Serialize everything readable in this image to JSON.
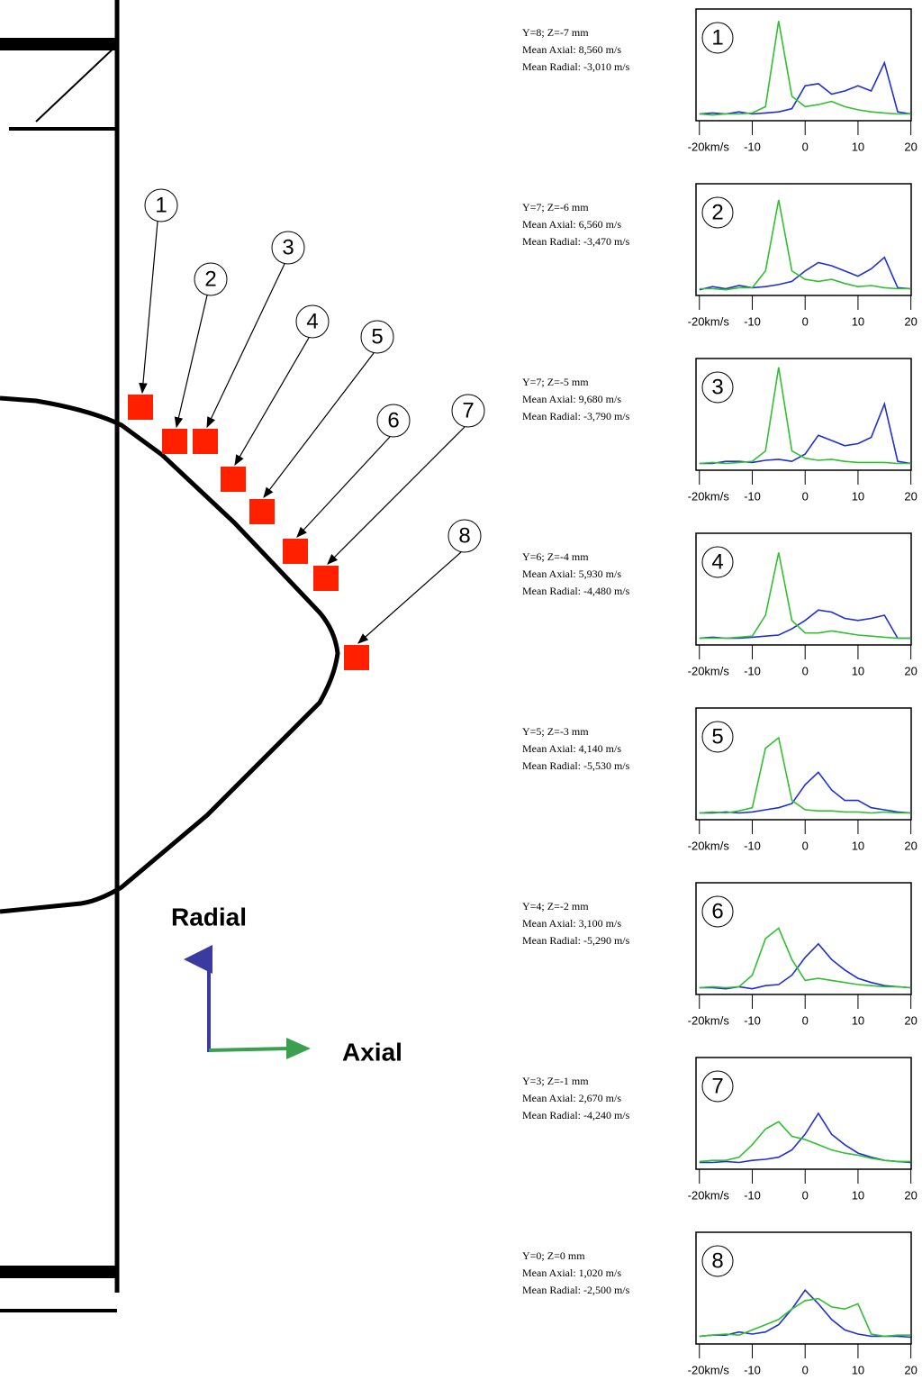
{
  "diagram": {
    "markers": [
      "1",
      "2",
      "3",
      "4",
      "5",
      "6",
      "7",
      "8"
    ],
    "radial_label": "Radial",
    "axial_label": "Axial"
  },
  "chart_data": [
    {
      "type": "line",
      "title": "1",
      "annotations": [
        "Y=8; Z=-7 mm",
        "Mean Axial: 8,560 m/s",
        "Mean Radial:  -3,010 m/s"
      ],
      "x": [
        -20,
        -17.5,
        -15,
        -12.5,
        -10,
        -7.5,
        -5,
        -2.5,
        0,
        2.5,
        5,
        7.5,
        10,
        12.5,
        15,
        17.5,
        20
      ],
      "series": [
        {
          "color": "#2030d0",
          "values": [
            0.03,
            0.04,
            0.03,
            0.05,
            0.03,
            0.04,
            0.05,
            0.08,
            0.3,
            0.32,
            0.22,
            0.25,
            0.3,
            0.25,
            0.52,
            0.05,
            0.03
          ]
        },
        {
          "color": "#30c030",
          "values": [
            0.03,
            0.02,
            0.03,
            0.03,
            0.04,
            0.1,
            0.92,
            0.2,
            0.1,
            0.12,
            0.15,
            0.1,
            0.07,
            0.05,
            0.04,
            0.03,
            0.03
          ]
        }
      ],
      "xlim": [
        -20.3,
        20.4
      ],
      "ylim": [
        0,
        1
      ],
      "xticks": [
        {
          "value": -20,
          "label": "-20km/s"
        },
        -10,
        0,
        10,
        20
      ]
    },
    {
      "type": "line",
      "title": "2",
      "annotations": [
        "Y=7; Z=-6 mm",
        "Mean Axial: 6,560 m/s",
        "Mean Radial:  -3,470 m/s"
      ],
      "x": [
        -20,
        -17.5,
        -15,
        -12.5,
        -10,
        -7.5,
        -5,
        -2.5,
        0,
        2.5,
        5,
        7.5,
        10,
        12.5,
        15,
        17.5,
        20
      ],
      "series": [
        {
          "color": "#2030d0",
          "values": [
            0.02,
            0.05,
            0.03,
            0.06,
            0.04,
            0.05,
            0.07,
            0.1,
            0.2,
            0.28,
            0.25,
            0.2,
            0.15,
            0.22,
            0.33,
            0.04,
            0.03
          ]
        },
        {
          "color": "#30c030",
          "values": [
            0.03,
            0.03,
            0.02,
            0.04,
            0.04,
            0.2,
            0.88,
            0.2,
            0.12,
            0.1,
            0.12,
            0.08,
            0.05,
            0.06,
            0.04,
            0.03,
            0.03
          ]
        }
      ],
      "xlim": [
        -20.3,
        20.4
      ],
      "ylim": [
        0,
        1
      ],
      "xticks": [
        {
          "value": -20,
          "label": "-20km/s"
        },
        -10,
        0,
        10,
        20
      ]
    },
    {
      "type": "line",
      "title": "3",
      "annotations": [
        "Y=7; Z=-5 mm",
        "Mean Axial: 9,680 m/s",
        "Mean Radial:  -3,790 m/s"
      ],
      "x": [
        -20,
        -17.5,
        -15,
        -12.5,
        -10,
        -7.5,
        -5,
        -2.5,
        0,
        2.5,
        5,
        7.5,
        10,
        12.5,
        15,
        17.5,
        20
      ],
      "series": [
        {
          "color": "#2030d0",
          "values": [
            0.03,
            0.03,
            0.05,
            0.05,
            0.04,
            0.06,
            0.07,
            0.05,
            0.12,
            0.3,
            0.25,
            0.2,
            0.22,
            0.28,
            0.6,
            0.05,
            0.03
          ]
        },
        {
          "color": "#30c030",
          "values": [
            0.03,
            0.04,
            0.03,
            0.04,
            0.05,
            0.15,
            0.95,
            0.15,
            0.08,
            0.06,
            0.07,
            0.05,
            0.04,
            0.04,
            0.04,
            0.03,
            0.03
          ]
        }
      ],
      "xlim": [
        -20.3,
        20.4
      ],
      "ylim": [
        0,
        1
      ],
      "xticks": [
        {
          "value": -20,
          "label": "-20km/s"
        },
        -10,
        0,
        10,
        20
      ]
    },
    {
      "type": "line",
      "title": "4",
      "annotations": [
        "Y=6; Z=-4 mm",
        "Mean Axial: 5,930 m/s",
        "Mean Radial:  -4,480 m/s"
      ],
      "x": [
        -20,
        -17.5,
        -15,
        -12.5,
        -10,
        -7.5,
        -5,
        -2.5,
        0,
        2.5,
        5,
        7.5,
        10,
        12.5,
        15,
        17.5,
        20
      ],
      "series": [
        {
          "color": "#2030d0",
          "values": [
            0.03,
            0.04,
            0.03,
            0.03,
            0.04,
            0.05,
            0.06,
            0.12,
            0.2,
            0.3,
            0.28,
            0.22,
            0.2,
            0.22,
            0.25,
            0.03,
            0.03
          ]
        },
        {
          "color": "#30c030",
          "values": [
            0.03,
            0.03,
            0.03,
            0.04,
            0.05,
            0.25,
            0.85,
            0.2,
            0.08,
            0.08,
            0.1,
            0.08,
            0.06,
            0.05,
            0.04,
            0.03,
            0.03
          ]
        }
      ],
      "xlim": [
        -20.3,
        20.4
      ],
      "ylim": [
        0,
        1
      ],
      "xticks": [
        {
          "value": -20,
          "label": "-20km/s"
        },
        -10,
        0,
        10,
        20
      ]
    },
    {
      "type": "line",
      "title": "5",
      "annotations": [
        "Y=5; Z=-3 mm",
        "Mean Axial: 4,140 m/s",
        "Mean Radial:  -5,530 m/s"
      ],
      "x": [
        -20,
        -17.5,
        -15,
        -12.5,
        -10,
        -7.5,
        -5,
        -2.5,
        0,
        2.5,
        5,
        7.5,
        10,
        12.5,
        15,
        17.5,
        20
      ],
      "series": [
        {
          "color": "#2030d0",
          "values": [
            0.03,
            0.03,
            0.04,
            0.03,
            0.04,
            0.06,
            0.08,
            0.12,
            0.3,
            0.42,
            0.25,
            0.15,
            0.15,
            0.08,
            0.06,
            0.04,
            0.03
          ]
        },
        {
          "color": "#30c030",
          "values": [
            0.03,
            0.04,
            0.03,
            0.05,
            0.08,
            0.65,
            0.75,
            0.15,
            0.06,
            0.05,
            0.05,
            0.04,
            0.04,
            0.03,
            0.04,
            0.03,
            0.03
          ]
        }
      ],
      "xlim": [
        -20.3,
        20.4
      ],
      "ylim": [
        0,
        1
      ],
      "xticks": [
        {
          "value": -20,
          "label": "-20km/s"
        },
        -10,
        0,
        10,
        20
      ]
    },
    {
      "type": "line",
      "title": "6",
      "annotations": [
        "Y=4; Z=-2 mm",
        "Mean Axial: 3,100 m/s",
        "Mean Radial:  -5,290 m/s"
      ],
      "x": [
        -20,
        -17.5,
        -15,
        -12.5,
        -10,
        -7.5,
        -5,
        -2.5,
        0,
        2.5,
        5,
        7.5,
        10,
        12.5,
        15,
        17.5,
        20
      ],
      "series": [
        {
          "color": "#2030d0",
          "values": [
            0.03,
            0.03,
            0.02,
            0.04,
            0.02,
            0.05,
            0.06,
            0.15,
            0.32,
            0.45,
            0.3,
            0.2,
            0.12,
            0.08,
            0.05,
            0.04,
            0.03
          ]
        },
        {
          "color": "#30c030",
          "values": [
            0.03,
            0.04,
            0.03,
            0.04,
            0.15,
            0.5,
            0.6,
            0.3,
            0.1,
            0.12,
            0.1,
            0.08,
            0.06,
            0.05,
            0.04,
            0.04,
            0.03
          ]
        }
      ],
      "xlim": [
        -20.3,
        20.4
      ],
      "ylim": [
        0,
        1
      ],
      "xticks": [
        {
          "value": -20,
          "label": "-20km/s"
        },
        -10,
        0,
        10,
        20
      ]
    },
    {
      "type": "line",
      "title": "7",
      "annotations": [
        "Y=3; Z=-1 mm",
        "Mean Axial: 2,670 m/s",
        "Mean Radial:  -4,240 m/s"
      ],
      "x": [
        -20,
        -17.5,
        -15,
        -12.5,
        -10,
        -7.5,
        -5,
        -2.5,
        0,
        2.5,
        5,
        7.5,
        10,
        12.5,
        15,
        17.5,
        20
      ],
      "series": [
        {
          "color": "#2030d0",
          "values": [
            0.03,
            0.03,
            0.04,
            0.03,
            0.05,
            0.06,
            0.08,
            0.15,
            0.3,
            0.5,
            0.3,
            0.2,
            0.12,
            0.08,
            0.05,
            0.04,
            0.03
          ]
        },
        {
          "color": "#30c030",
          "values": [
            0.04,
            0.05,
            0.05,
            0.08,
            0.2,
            0.35,
            0.42,
            0.28,
            0.25,
            0.2,
            0.15,
            0.12,
            0.1,
            0.07,
            0.05,
            0.04,
            0.04
          ]
        }
      ],
      "xlim": [
        -20.3,
        20.4
      ],
      "ylim": [
        0,
        1
      ],
      "xticks": [
        {
          "value": -20,
          "label": "-20km/s"
        },
        -10,
        0,
        10,
        20
      ]
    },
    {
      "type": "line",
      "title": "8",
      "annotations": [
        "Y=0; Z=0 mm",
        "Mean Axial: 1,020 m/s",
        "Mean Radial:  -2,500 m/s"
      ],
      "x": [
        -20,
        -17.5,
        -15,
        -12.5,
        -10,
        -7.5,
        -5,
        -2.5,
        0,
        2.5,
        5,
        7.5,
        10,
        12.5,
        15,
        17.5,
        20
      ],
      "series": [
        {
          "color": "#2030d0",
          "values": [
            0.04,
            0.05,
            0.05,
            0.08,
            0.06,
            0.08,
            0.15,
            0.3,
            0.48,
            0.35,
            0.2,
            0.1,
            0.06,
            0.04,
            0.04,
            0.04,
            0.03
          ]
        },
        {
          "color": "#30c030",
          "values": [
            0.04,
            0.05,
            0.06,
            0.05,
            0.1,
            0.15,
            0.2,
            0.3,
            0.38,
            0.4,
            0.32,
            0.3,
            0.35,
            0.06,
            0.04,
            0.05,
            0.05
          ]
        }
      ],
      "xlim": [
        -20.3,
        20.4
      ],
      "ylim": [
        0,
        1
      ],
      "xticks": [
        {
          "value": -20,
          "label": "-20km/s"
        },
        -10,
        0,
        10,
        20
      ]
    }
  ]
}
